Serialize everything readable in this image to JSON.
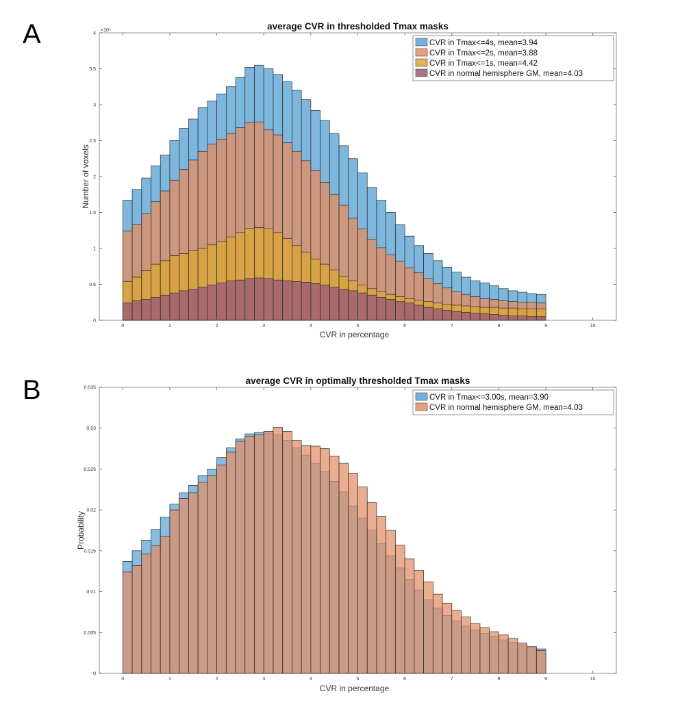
{
  "panels": {
    "a": "A",
    "b": "B"
  },
  "colors": {
    "blue": "#5aa3d5",
    "orange": "#e38e64",
    "yellow": "#dba735",
    "purple": "#9b5a76",
    "overlap_ab": "#a97665"
  },
  "chart_data": [
    {
      "type": "bar",
      "title": "average CVR in thresholded Tmax masks",
      "xlabel": "CVR in percentage",
      "ylabel": "Number of voxels",
      "exponent_label": "×10⁴",
      "xlim": [
        -0.5,
        10.5
      ],
      "ylim": [
        0,
        40000
      ],
      "xticks": [
        0,
        1,
        2,
        3,
        4,
        5,
        6,
        7,
        8,
        9,
        10
      ],
      "yticks": [
        0,
        5000,
        10000,
        15000,
        20000,
        25000,
        30000,
        35000,
        40000
      ],
      "ytick_labels": [
        "0",
        "0.5",
        "1",
        "1.5",
        "2",
        "2.5",
        "3",
        "3.5",
        "4"
      ],
      "bin_edges_start": 0,
      "bin_width": 0.2,
      "series": [
        {
          "name": "CVR in Tmax<=4s, mean=3.94",
          "color": "#5aa3d5",
          "values": [
            16700,
            18200,
            19800,
            21500,
            23000,
            25000,
            26700,
            28000,
            29600,
            30500,
            31500,
            32500,
            33800,
            35200,
            35500,
            35000,
            34200,
            33200,
            32000,
            30700,
            29200,
            27800,
            26000,
            24300,
            22500,
            20500,
            18500,
            16700,
            15000,
            13300,
            11700,
            10400,
            9300,
            8300,
            7400,
            6700,
            6000,
            5500,
            5200,
            4800,
            4400,
            4100,
            3900,
            3700,
            3600
          ]
        },
        {
          "name": "CVR in Tmax<=2s, mean=3.88",
          "color": "#e38e64",
          "values": [
            12400,
            13300,
            14800,
            16500,
            18000,
            19500,
            21000,
            22300,
            23500,
            24500,
            25200,
            26000,
            26800,
            27500,
            27600,
            26500,
            25800,
            24700,
            23500,
            22200,
            20800,
            19200,
            17500,
            16000,
            14200,
            12700,
            11300,
            10100,
            9100,
            8200,
            7300,
            6600,
            5800,
            5100,
            4500,
            4000,
            3600,
            3300,
            3000,
            2900,
            2700,
            2600,
            2500,
            2500,
            2400
          ]
        },
        {
          "name": "CVR in Tmax<=1s, mean=4.42",
          "color": "#dba735",
          "values": [
            5400,
            6000,
            6900,
            7800,
            8300,
            9000,
            9300,
            9700,
            10000,
            10500,
            11000,
            11600,
            12200,
            12800,
            12900,
            12700,
            12200,
            11400,
            10400,
            9500,
            8500,
            7800,
            7000,
            6100,
            5500,
            4900,
            4400,
            4000,
            3600,
            3300,
            3000,
            2800,
            2600,
            2400,
            2200,
            2100,
            2000,
            1900,
            1800,
            1800,
            1700,
            1700,
            1600,
            1600,
            1600
          ]
        },
        {
          "name": "CVR in normal hemisphere GM, mean=4.03",
          "color": "#9b5a76",
          "values": [
            2400,
            2700,
            2900,
            3200,
            3500,
            3800,
            4100,
            4300,
            4600,
            4900,
            5200,
            5500,
            5600,
            5800,
            5900,
            5800,
            5600,
            5500,
            5400,
            5300,
            5100,
            4900,
            4600,
            4300,
            4100,
            3800,
            3500,
            3200,
            2900,
            2600,
            2400,
            2100,
            1800,
            1600,
            1400,
            1200,
            1100,
            1000,
            900,
            800,
            700,
            600,
            600,
            500,
            500
          ]
        }
      ]
    },
    {
      "type": "bar",
      "title": "average CVR in optimally thresholded Tmax masks",
      "xlabel": "CVR in percentage",
      "ylabel": "Probability",
      "xlim": [
        -0.5,
        10.5
      ],
      "ylim": [
        0,
        0.035
      ],
      "xticks": [
        0,
        1,
        2,
        3,
        4,
        5,
        6,
        7,
        8,
        9,
        10
      ],
      "yticks": [
        0,
        0.005,
        0.01,
        0.015,
        0.02,
        0.025,
        0.03,
        0.035
      ],
      "ytick_labels": [
        "0",
        "0.005",
        "0.01",
        "0.015",
        "0.02",
        "0.025",
        "0.03",
        "0.035"
      ],
      "bin_edges_start": 0,
      "bin_width": 0.2,
      "series": [
        {
          "name": "CVR in Tmax<=3.00s, mean=3.90",
          "color": "#5aa3d5",
          "values": [
            0.0137,
            0.015,
            0.0163,
            0.0176,
            0.0191,
            0.0207,
            0.0221,
            0.023,
            0.0242,
            0.025,
            0.0264,
            0.0276,
            0.0287,
            0.0293,
            0.0295,
            0.0294,
            0.0292,
            0.0285,
            0.0276,
            0.0267,
            0.0257,
            0.0247,
            0.0235,
            0.0222,
            0.0205,
            0.019,
            0.0175,
            0.0159,
            0.0144,
            0.0129,
            0.0115,
            0.0102,
            0.009,
            0.008,
            0.0071,
            0.0064,
            0.0058,
            0.0053,
            0.0049,
            0.0045,
            0.0041,
            0.0038,
            0.0035,
            0.0032,
            0.003
          ]
        },
        {
          "name": "CVR in normal hemisphere GM, mean=4.03",
          "color": "#e38e64",
          "values": [
            0.0124,
            0.0132,
            0.0146,
            0.0156,
            0.0168,
            0.02,
            0.0214,
            0.0221,
            0.0234,
            0.0242,
            0.0255,
            0.0271,
            0.0284,
            0.029,
            0.0292,
            0.0296,
            0.0301,
            0.0296,
            0.0285,
            0.0279,
            0.0278,
            0.0275,
            0.0266,
            0.0257,
            0.0245,
            0.0228,
            0.0209,
            0.0192,
            0.0175,
            0.0157,
            0.014,
            0.0126,
            0.0112,
            0.0097,
            0.0086,
            0.0077,
            0.0069,
            0.0061,
            0.0056,
            0.0051,
            0.0047,
            0.0043,
            0.0037,
            0.0033,
            0.0028
          ]
        }
      ]
    }
  ]
}
